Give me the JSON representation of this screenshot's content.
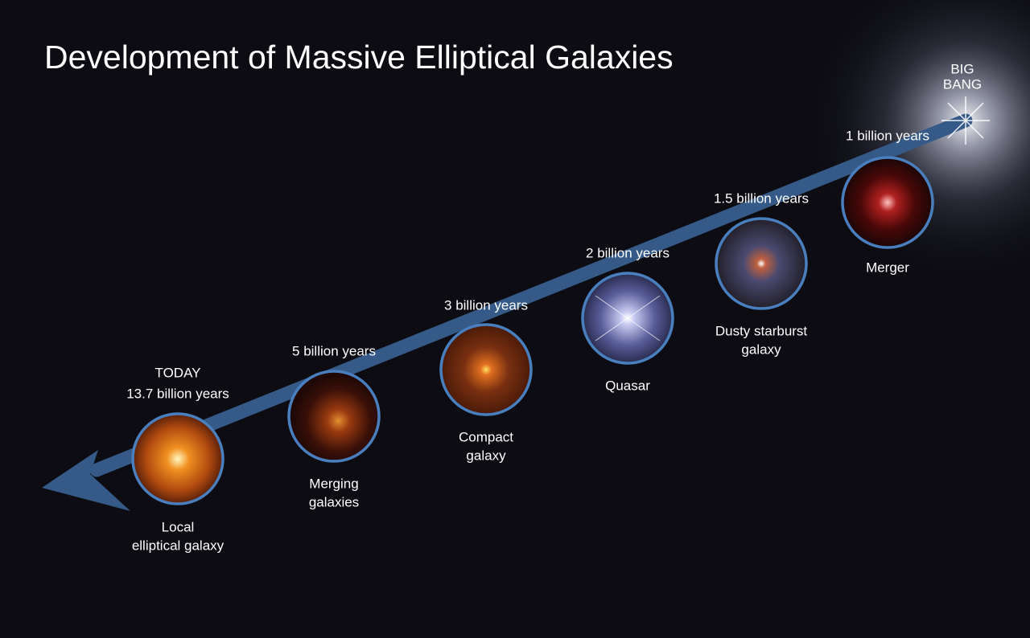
{
  "title": "Development of Massive Elliptical Galaxies",
  "big_bang": [
    "BIG",
    "BANG"
  ],
  "stages": [
    {
      "time": [
        "1 billion years"
      ],
      "name": [
        "Merger"
      ]
    },
    {
      "time": [
        "1.5 billion years"
      ],
      "name": [
        "Dusty starburst",
        "galaxy"
      ]
    },
    {
      "time": [
        "2 billion years"
      ],
      "name": [
        "Quasar"
      ]
    },
    {
      "time": [
        "3 billion years"
      ],
      "name": [
        "Compact",
        "galaxy"
      ]
    },
    {
      "time": [
        "5 billion years"
      ],
      "name": [
        "Merging",
        "galaxies"
      ]
    },
    {
      "time": [
        "TODAY",
        "13.7 billion years"
      ],
      "name": [
        "Local",
        "elliptical galaxy"
      ]
    }
  ]
}
